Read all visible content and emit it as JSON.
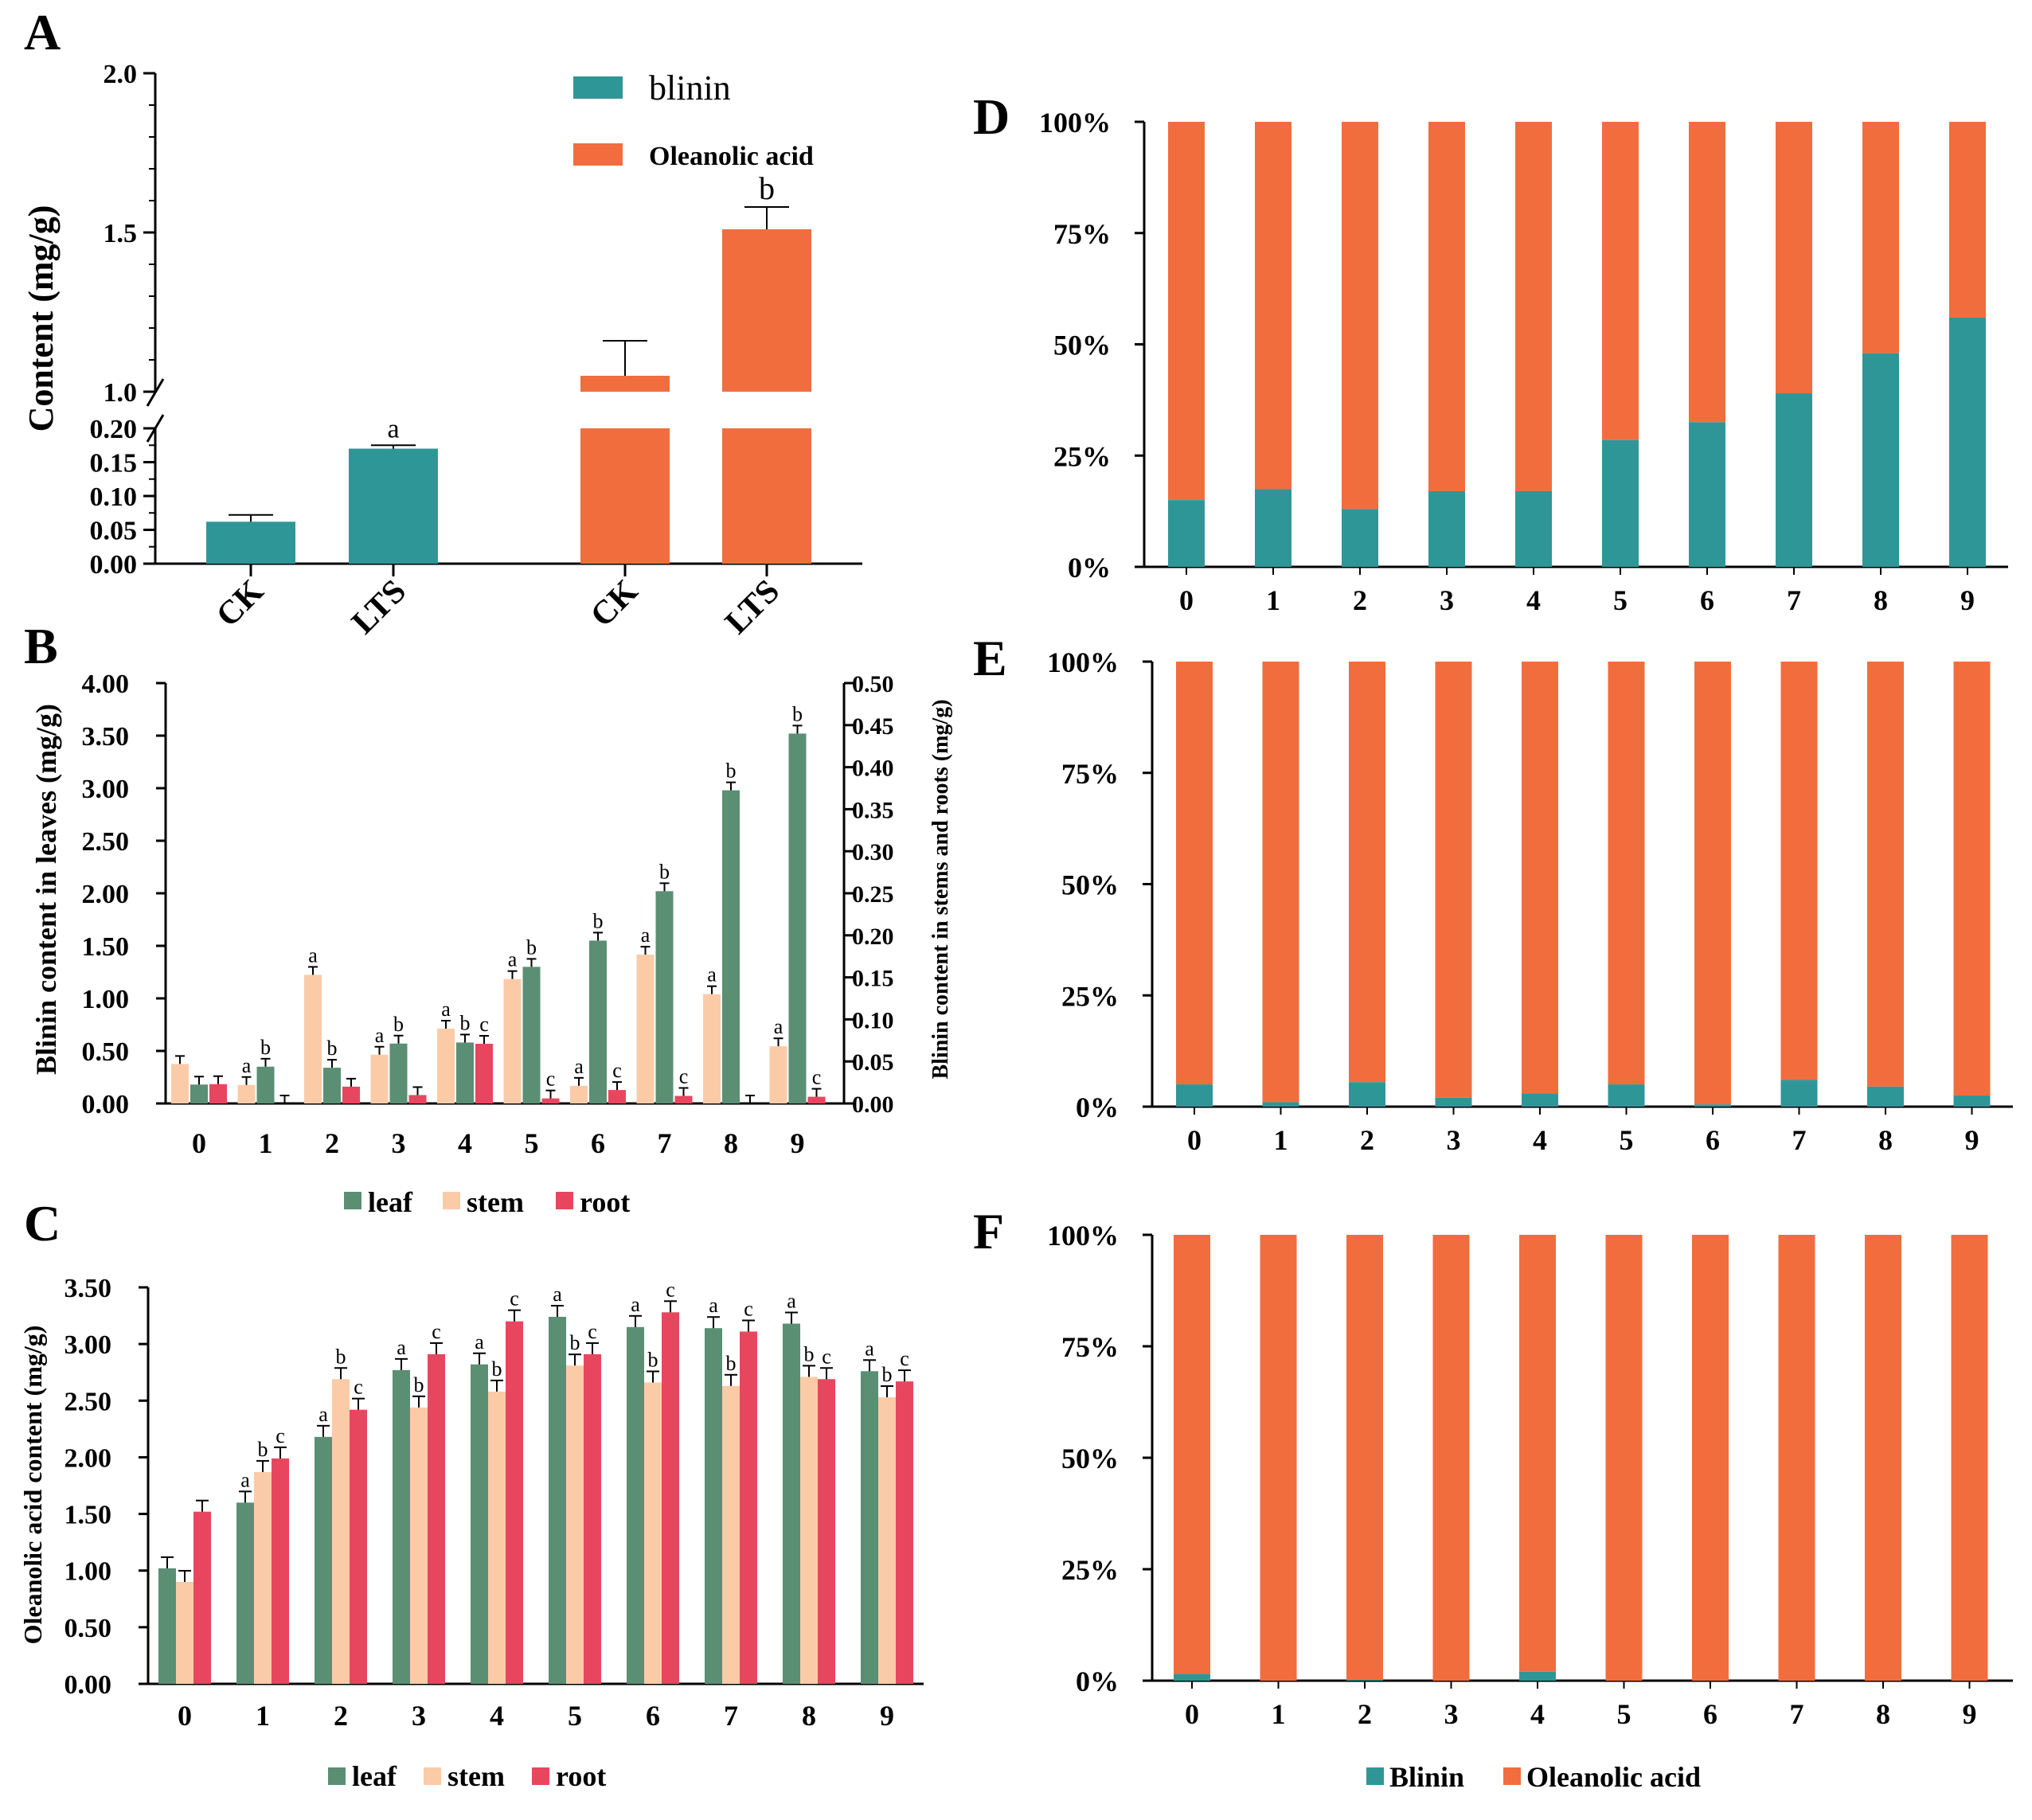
{
  "colors": {
    "teal": "#2f9698",
    "orange": "#f26d3e",
    "leaf": "#5a8f74",
    "stem": "#fbcba8",
    "root": "#e8465f"
  },
  "chart_data": [
    {
      "panel": "A",
      "type": "bar",
      "ylabel": "Content (mg/g)",
      "y_ticks_lower": [
        "0.00",
        "0.05",
        "0.10",
        "0.15",
        "0.20"
      ],
      "y_ticks_upper": [
        "1.0",
        "1.5",
        "2.0"
      ],
      "y_axis_break": [
        0.2,
        1.0
      ],
      "legend": [
        "blinin",
        "Oleanolic acid"
      ],
      "groups": [
        {
          "series": "blinin",
          "categories": [
            "CK",
            "LTS"
          ],
          "values": [
            0.062,
            0.17
          ],
          "errors": [
            0.01,
            0.005
          ],
          "letters": [
            "",
            "a"
          ]
        },
        {
          "series": "Oleanolic acid",
          "categories": [
            "CK",
            "LTS"
          ],
          "values": [
            1.05,
            1.51
          ],
          "errors": [
            0.11,
            0.07
          ],
          "letters": [
            "",
            "b"
          ]
        }
      ]
    },
    {
      "panel": "B",
      "type": "bar",
      "ylabel": "Blinin content in leaves (mg/g)",
      "ylabel_right": "Blinin content in stems and roots (mg/g)",
      "ylim": [
        0,
        4.0
      ],
      "ylim_right": [
        0,
        0.5
      ],
      "y_ticks": [
        "0.00",
        "0.50",
        "1.00",
        "1.50",
        "2.00",
        "2.50",
        "3.00",
        "3.50",
        "4.00"
      ],
      "y_ticks_right": [
        "0.00",
        "0.05",
        "0.10",
        "0.15",
        "0.20",
        "0.25",
        "0.30",
        "0.35",
        "0.40",
        "0.45",
        "0.50"
      ],
      "categories": [
        "0",
        "1",
        "2",
        "3",
        "4",
        "5",
        "6",
        "7",
        "8",
        "9"
      ],
      "legend": [
        "leaf",
        "stem",
        "root"
      ],
      "series": [
        {
          "name": "leaf",
          "axis": "left",
          "values": [
            0.18,
            0.35,
            0.34,
            0.57,
            0.58,
            1.3,
            1.55,
            2.02,
            2.98,
            3.52
          ],
          "letters": [
            "",
            "b",
            "b",
            "b",
            "b",
            "b",
            "b",
            "b",
            "b",
            "b"
          ]
        },
        {
          "name": "stem",
          "axis": "right",
          "values": [
            0.047,
            0.022,
            0.153,
            0.058,
            0.089,
            0.148,
            0.021,
            0.177,
            0.13,
            0.068
          ],
          "letters": [
            "",
            "a",
            "a",
            "a",
            "a",
            "a",
            "a",
            "a",
            "a",
            "a"
          ]
        },
        {
          "name": "root",
          "axis": "right",
          "values": [
            0.023,
            0.0,
            0.02,
            0.01,
            0.071,
            0.006,
            0.016,
            0.009,
            0.0,
            0.008
          ],
          "letters": [
            "",
            "",
            "",
            "",
            "c",
            "c",
            "c",
            "c",
            "",
            "c"
          ]
        }
      ]
    },
    {
      "panel": "C",
      "type": "bar",
      "ylabel": "Oleanolic acid content (mg/g)",
      "ylim": [
        0,
        3.5
      ],
      "y_ticks": [
        "0.00",
        "0.50",
        "1.00",
        "1.50",
        "2.00",
        "2.50",
        "3.00",
        "3.50"
      ],
      "categories": [
        "0",
        "1",
        "2",
        "3",
        "4",
        "5",
        "6",
        "7",
        "8",
        "9"
      ],
      "legend": [
        "leaf",
        "stem",
        "root"
      ],
      "series": [
        {
          "name": "leaf",
          "values": [
            1.02,
            1.6,
            2.18,
            2.77,
            2.82,
            3.24,
            3.15,
            3.14,
            3.18,
            2.76
          ],
          "letters": [
            "",
            "a",
            "a",
            "a",
            "a",
            "a",
            "a",
            "a",
            "a",
            "a"
          ]
        },
        {
          "name": "stem",
          "values": [
            0.9,
            1.87,
            2.69,
            2.44,
            2.58,
            2.81,
            2.66,
            2.63,
            2.71,
            2.53
          ],
          "letters": [
            "",
            "b",
            "b",
            "b",
            "b",
            "b",
            "b",
            "b",
            "b",
            "b"
          ]
        },
        {
          "name": "root",
          "values": [
            1.52,
            1.99,
            2.42,
            2.91,
            3.2,
            2.91,
            3.28,
            3.11,
            2.69,
            2.67
          ],
          "letters": [
            "",
            "c",
            "c",
            "c",
            "c",
            "c",
            "c",
            "c",
            "c",
            "c"
          ]
        }
      ]
    },
    {
      "panel": "D",
      "type": "bar",
      "stacked": "percent",
      "categories": [
        "0",
        "1",
        "2",
        "3",
        "4",
        "5",
        "6",
        "7",
        "8",
        "9"
      ],
      "y_ticks": [
        "0%",
        "25%",
        "50%",
        "75%",
        "100%"
      ],
      "series": [
        {
          "name": "Blinin",
          "values": [
            15,
            17.5,
            13,
            17,
            17,
            28.5,
            32.5,
            39,
            48,
            56
          ]
        },
        {
          "name": "Oleanolic acid",
          "values": [
            85,
            82.5,
            87,
            83,
            83,
            71.5,
            67.5,
            61,
            52,
            44
          ]
        }
      ]
    },
    {
      "panel": "E",
      "type": "bar",
      "stacked": "percent",
      "categories": [
        "0",
        "1",
        "2",
        "3",
        "4",
        "5",
        "6",
        "7",
        "8",
        "9"
      ],
      "y_ticks": [
        "0%",
        "25%",
        "50%",
        "75%",
        "100%"
      ],
      "series": [
        {
          "name": "Blinin",
          "values": [
            5,
            1,
            5.5,
            2,
            3,
            5,
            0.5,
            6,
            4.5,
            2.5
          ]
        },
        {
          "name": "Oleanolic acid",
          "values": [
            95,
            99,
            94.5,
            98,
            97,
            95,
            99.5,
            94,
            95.5,
            97.5
          ]
        }
      ]
    },
    {
      "panel": "F",
      "type": "bar",
      "stacked": "percent",
      "categories": [
        "0",
        "1",
        "2",
        "3",
        "4",
        "5",
        "6",
        "7",
        "8",
        "9"
      ],
      "y_ticks": [
        "0%",
        "25%",
        "50%",
        "75%",
        "100%"
      ],
      "legend": [
        "Blinin",
        "Oleanolic acid"
      ],
      "series": [
        {
          "name": "Blinin",
          "values": [
            1.5,
            0,
            0.3,
            0,
            2,
            0,
            0,
            0,
            0,
            0
          ]
        },
        {
          "name": "Oleanolic acid",
          "values": [
            98.5,
            100,
            99.7,
            100,
            98,
            100,
            100,
            100,
            100,
            100
          ]
        }
      ]
    }
  ]
}
